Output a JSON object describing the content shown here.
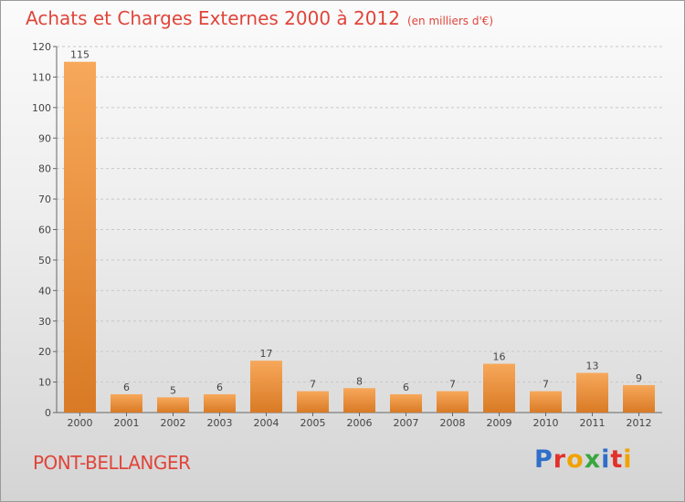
{
  "title": "Achats et Charges Externes 2000 à 2012",
  "unit": "(en milliers d'€)",
  "commune": "PONT-BELLANGER",
  "logo": {
    "text": "Proxiti",
    "letters": [
      {
        "ch": "P",
        "color": "#2f6fc9"
      },
      {
        "ch": "r",
        "color": "#e2312b"
      },
      {
        "ch": "o",
        "color": "#f2a200"
      },
      {
        "ch": "x",
        "color": "#3aa640"
      },
      {
        "ch": "i",
        "color": "#2f6fc9"
      },
      {
        "ch": "t",
        "color": "#e2312b"
      },
      {
        "ch": "i",
        "color": "#f2a200"
      }
    ]
  },
  "colors": {
    "bar_top": "#f7a85a",
    "bar_bottom": "#d97a25",
    "title": "#e0453a",
    "grid": "#c8c8c8"
  },
  "chart_data": {
    "type": "bar",
    "title": "Achats et Charges Externes 2000 à 2012",
    "subtitle": "(en milliers d'€)",
    "categories": [
      "2000",
      "2001",
      "2002",
      "2003",
      "2004",
      "2005",
      "2006",
      "2007",
      "2008",
      "2009",
      "2010",
      "2011",
      "2012"
    ],
    "values": [
      115,
      6,
      5,
      6,
      17,
      7,
      8,
      6,
      7,
      16,
      7,
      13,
      9
    ],
    "ylim": [
      0,
      120
    ],
    "yticks": [
      0,
      10,
      20,
      30,
      40,
      50,
      60,
      70,
      80,
      90,
      100,
      110,
      120
    ],
    "grid": true,
    "data_labels": true
  }
}
